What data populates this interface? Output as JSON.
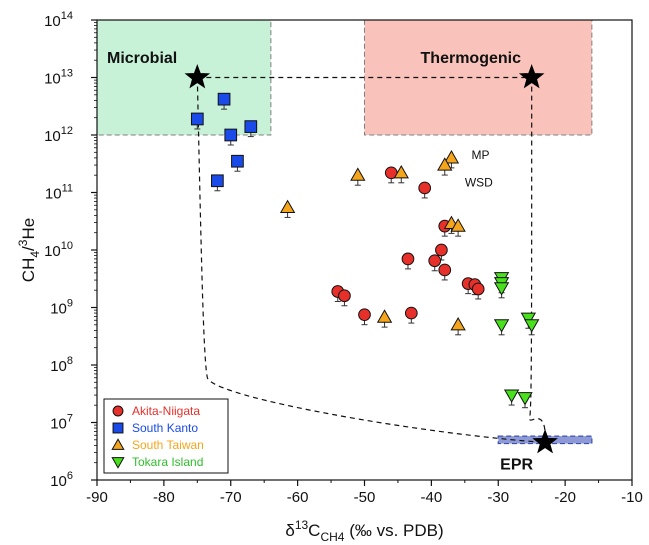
{
  "chart_data": {
    "type": "scatter",
    "xlabel": {
      "main": "δ",
      "sup": "13",
      "base": "C",
      "sub": "CH4",
      "tail": " (‰ vs. PDB)"
    },
    "ylabel": {
      "main": "CH",
      "sub": "4",
      "mid": "/",
      "sup": "3",
      "tail": "He"
    },
    "xlim": [
      -90,
      -10
    ],
    "ylim_log10": [
      6,
      14
    ],
    "y_scale": "log",
    "x_ticks": [
      -90,
      -80,
      -70,
      -60,
      -50,
      -40,
      -30,
      -20,
      -10
    ],
    "y_tick_exponents": [
      6,
      7,
      8,
      9,
      10,
      11,
      12,
      13,
      14
    ],
    "y_tick_base": "10",
    "grid": false,
    "legend_position": "bottom-left",
    "regions": [
      {
        "name": "Microbial",
        "x": [
          -90,
          -64
        ],
        "y": [
          1000000000000.0,
          100000000000000.0
        ],
        "fill": "#c8f2d8",
        "stroke": "#808080"
      },
      {
        "name": "Thermogenic",
        "x": [
          -50,
          -16
        ],
        "y": [
          1000000000000.0,
          100000000000000.0
        ],
        "fill": "#f9c3bb",
        "stroke": "#808080"
      },
      {
        "name": "EPR",
        "x": [
          -30,
          -16
        ],
        "y": [
          4300000.0,
          5800000.0
        ],
        "fill": "#8e9ad6",
        "stroke": "#3d4fb0"
      }
    ],
    "endmembers": [
      {
        "name": "Microbial",
        "x": -75,
        "y": 10000000000000.0
      },
      {
        "name": "Thermogenic",
        "x": -25,
        "y": 10000000000000.0
      },
      {
        "name": "EPR",
        "x": -23,
        "y": 4500000.0
      }
    ],
    "annotations": [
      {
        "text": "MP",
        "x": -34,
        "y": 450000000000.0
      },
      {
        "text": "WSD",
        "x": -35,
        "y": 150000000000.0
      }
    ],
    "series": [
      {
        "name": "Akita-Niigata",
        "marker": "circle",
        "color": "#e8302b",
        "text_color": "#e8302b",
        "points": [
          {
            "x": -46,
            "y": 220000000000.0
          },
          {
            "x": -41,
            "y": 120000000000.0
          },
          {
            "x": -38,
            "y": 26000000000.0
          },
          {
            "x": -38.5,
            "y": 10000000000.0
          },
          {
            "x": -38,
            "y": 4500000000.0
          },
          {
            "x": -43.5,
            "y": 7000000000.0
          },
          {
            "x": -39.5,
            "y": 6500000000.0
          },
          {
            "x": -34.5,
            "y": 2600000000.0
          },
          {
            "x": -33.5,
            "y": 2500000000.0
          },
          {
            "x": -33,
            "y": 2100000000.0
          },
          {
            "x": -54,
            "y": 1900000000.0
          },
          {
            "x": -53,
            "y": 1600000000.0
          },
          {
            "x": -50,
            "y": 750000000.0
          },
          {
            "x": -43,
            "y": 800000000.0
          }
        ]
      },
      {
        "name": "South Kanto",
        "marker": "square",
        "color": "#1a4be8",
        "text_color": "#1a4be8",
        "points": [
          {
            "x": -71,
            "y": 4200000000000.0
          },
          {
            "x": -75,
            "y": 1900000000000.0
          },
          {
            "x": -67,
            "y": 1400000000000.0
          },
          {
            "x": -70,
            "y": 1000000000000.0
          },
          {
            "x": -69,
            "y": 350000000000.0
          },
          {
            "x": -72,
            "y": 160000000000.0
          }
        ]
      },
      {
        "name": "South Taiwan",
        "marker": "triangle-up",
        "color": "#f5a51c",
        "text_color": "#f5a51c",
        "points": [
          {
            "x": -37,
            "y": 400000000000.0
          },
          {
            "x": -38,
            "y": 300000000000.0
          },
          {
            "x": -51,
            "y": 200000000000.0
          },
          {
            "x": -44.5,
            "y": 220000000000.0
          },
          {
            "x": -61.5,
            "y": 55000000000.0
          },
          {
            "x": -37,
            "y": 29000000000.0
          },
          {
            "x": -36,
            "y": 26000000000.0
          },
          {
            "x": -47,
            "y": 680000000.0
          },
          {
            "x": -36,
            "y": 500000000.0
          }
        ]
      },
      {
        "name": "Tokara Island",
        "marker": "triangle-down",
        "color": "#49e01c",
        "text_color": "#2fbf2a",
        "points": [
          {
            "x": -29.5,
            "y": 3300000000.0
          },
          {
            "x": -29.5,
            "y": 2700000000.0
          },
          {
            "x": -29.5,
            "y": 2200000000.0
          },
          {
            "x": -25.5,
            "y": 650000000.0
          },
          {
            "x": -25,
            "y": 500000000.0
          },
          {
            "x": -29.5,
            "y": 500000000.0
          },
          {
            "x": -28,
            "y": 30000000.0
          },
          {
            "x": -26,
            "y": 27000000.0
          }
        ]
      }
    ]
  }
}
